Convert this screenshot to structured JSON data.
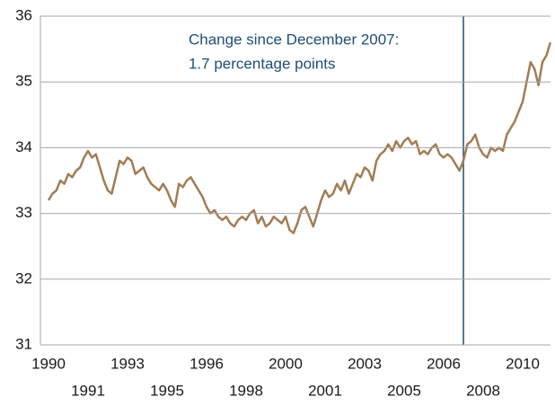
{
  "chart_data": {
    "type": "line",
    "annotation": [
      "Change since December 2007:",
      "1.7 percentage points"
    ],
    "categories": [
      "1990",
      null,
      null,
      null,
      null,
      null,
      null,
      null,
      null,
      null,
      "1991",
      null,
      null,
      null,
      null,
      null,
      null,
      null,
      null,
      null,
      "1993",
      null,
      null,
      null,
      null,
      null,
      null,
      null,
      null,
      null,
      "1995",
      null,
      null,
      null,
      null,
      null,
      null,
      null,
      null,
      null,
      "1996",
      null,
      null,
      null,
      null,
      null,
      null,
      null,
      null,
      null,
      "1998",
      null,
      null,
      null,
      null,
      null,
      null,
      null,
      null,
      null,
      "2000",
      null,
      null,
      null,
      null,
      null,
      null,
      null,
      null,
      null,
      "2001",
      null,
      null,
      null,
      null,
      null,
      null,
      null,
      null,
      null,
      "2003",
      null,
      null,
      null,
      null,
      null,
      null,
      null,
      null,
      null,
      "2005",
      null,
      null,
      null,
      null,
      null,
      null,
      null,
      null,
      null,
      "2006",
      null,
      null,
      null,
      null,
      null,
      null,
      null,
      null,
      null,
      "2008",
      null,
      null,
      null,
      null,
      null,
      null,
      null,
      null,
      null,
      "2010",
      null,
      null,
      null,
      null,
      null,
      null,
      null
    ],
    "series": [
      {
        "color": "#a27d55",
        "values": [
          33.2,
          33.3,
          33.35,
          33.5,
          33.45,
          33.6,
          33.55,
          33.65,
          33.7,
          33.85,
          33.95,
          33.85,
          33.9,
          33.7,
          33.5,
          33.35,
          33.3,
          33.55,
          33.8,
          33.75,
          33.85,
          33.8,
          33.6,
          33.65,
          33.7,
          33.55,
          33.45,
          33.4,
          33.35,
          33.45,
          33.35,
          33.2,
          33.1,
          33.45,
          33.4,
          33.5,
          33.55,
          33.45,
          33.35,
          33.25,
          33.1,
          33.0,
          33.05,
          32.95,
          32.9,
          32.95,
          32.85,
          32.8,
          32.9,
          32.95,
          32.9,
          33.0,
          33.05,
          32.85,
          32.95,
          32.8,
          32.85,
          32.95,
          32.9,
          32.85,
          32.95,
          32.75,
          32.7,
          32.85,
          33.05,
          33.1,
          32.95,
          32.8,
          33.0,
          33.2,
          33.35,
          33.25,
          33.3,
          33.45,
          33.35,
          33.5,
          33.3,
          33.45,
          33.6,
          33.55,
          33.7,
          33.65,
          33.5,
          33.8,
          33.9,
          33.95,
          34.05,
          33.95,
          34.1,
          34.0,
          34.1,
          34.15,
          34.05,
          34.1,
          33.9,
          33.95,
          33.9,
          34.0,
          34.05,
          33.9,
          33.85,
          33.9,
          33.85,
          33.75,
          33.65,
          33.8,
          34.05,
          34.1,
          34.2,
          34.0,
          33.9,
          33.85,
          34.0,
          33.95,
          34.0,
          33.95,
          34.2,
          34.3,
          34.4,
          34.55,
          34.7,
          35.0,
          35.3,
          35.2,
          34.95,
          35.3,
          35.4,
          35.6
        ]
      }
    ],
    "marker_index": 105,
    "marker_color": "#1f4e6e",
    "ylim": [
      31,
      36
    ],
    "yticks": [
      31,
      32,
      33,
      34,
      35,
      36
    ],
    "grid": true
  }
}
